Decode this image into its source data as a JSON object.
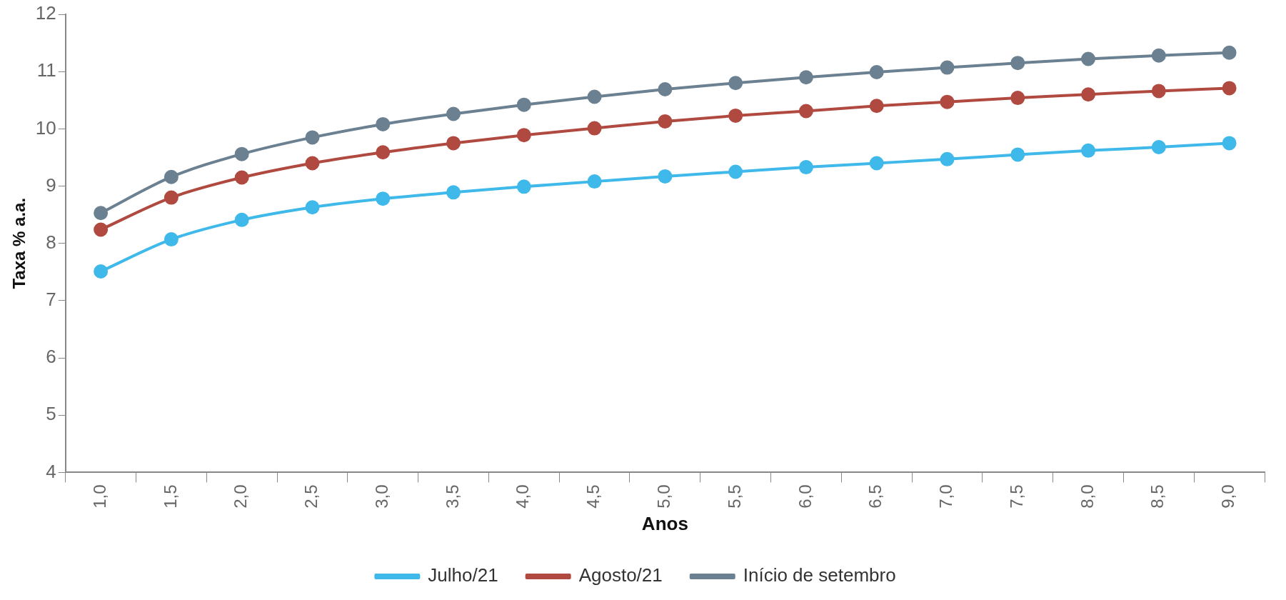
{
  "chart_data": {
    "type": "line",
    "xlabel": "Anos",
    "ylabel": "Taxa % a.a.",
    "categories": [
      "1,0",
      "1,5",
      "2,0",
      "2,5",
      "3,0",
      "3,5",
      "4,0",
      "4,5",
      "5,0",
      "5,5",
      "6,0",
      "6,5",
      "7,0",
      "7,5",
      "8,0",
      "8,5",
      "9,0"
    ],
    "series": [
      {
        "name": "Julho/21",
        "color": "#3fb8ea",
        "values": [
          7.51,
          8.07,
          8.41,
          8.63,
          8.78,
          8.89,
          8.99,
          9.08,
          9.17,
          9.25,
          9.33,
          9.4,
          9.47,
          9.55,
          9.62,
          9.68,
          9.75
        ]
      },
      {
        "name": "Agosto/21",
        "color": "#b04a40",
        "values": [
          8.24,
          8.8,
          9.15,
          9.4,
          9.59,
          9.75,
          9.89,
          10.01,
          10.13,
          10.23,
          10.31,
          10.4,
          10.47,
          10.54,
          10.6,
          10.66,
          10.71
        ]
      },
      {
        "name": "Início de setembro",
        "color": "#6b8090",
        "values": [
          8.53,
          9.16,
          9.56,
          9.85,
          10.08,
          10.26,
          10.42,
          10.56,
          10.69,
          10.8,
          10.9,
          10.99,
          11.07,
          11.15,
          11.22,
          11.28,
          11.33
        ]
      }
    ],
    "ylim": [
      4,
      12
    ],
    "yticks": [
      4,
      5,
      6,
      7,
      8,
      9,
      10,
      11,
      12
    ],
    "grid": false,
    "legend": "bottom",
    "marker": "circle",
    "line_style": "solid"
  }
}
